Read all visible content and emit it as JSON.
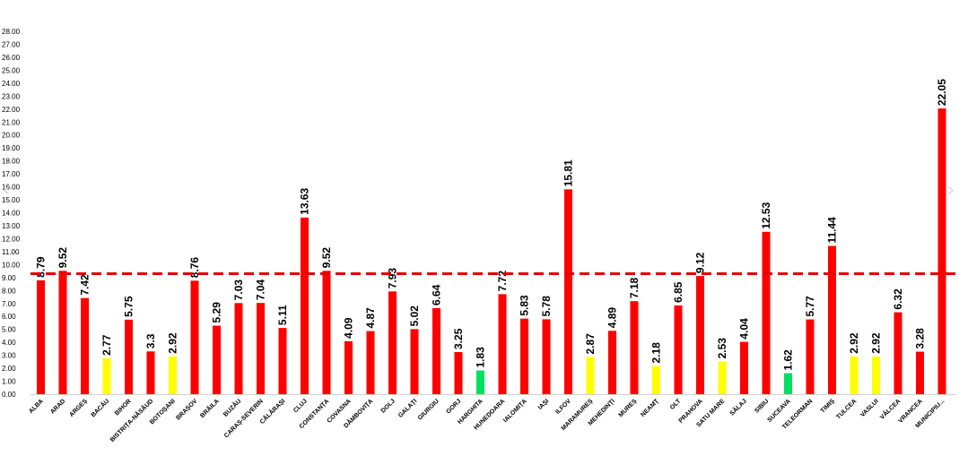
{
  "chart_data": {
    "type": "bar",
    "title": "",
    "xlabel": "",
    "ylabel": "",
    "ylim": [
      0,
      28
    ],
    "ytick_step": 1,
    "ytick_format": "0.00",
    "grid": false,
    "reference_line": {
      "value": 9.3,
      "style": "dashed",
      "color": "#e60000"
    },
    "categories": [
      "ALBA",
      "ARAD",
      "ARGEȘ",
      "BACĂU",
      "BIHOR",
      "BISTRIȚA-NĂSĂUD",
      "BOTOȘANI",
      "BRAȘOV",
      "BRĂILA",
      "BUZĂU",
      "CARAȘ-SEVERIN",
      "CĂLĂRAȘI",
      "CLUJ",
      "CONSTANȚA",
      "COVASNA",
      "DÂMBOVIȚA",
      "DOLJ",
      "GALAȚI",
      "GIURGIU",
      "GORJ",
      "HARGHITA",
      "HUNEDOARA",
      "IALOMIȚA",
      "IAȘI",
      "ILFOV",
      "MARAMUREȘ",
      "MEHEDINȚI",
      "MUREȘ",
      "NEAMȚ",
      "OLT",
      "PRAHOVA",
      "SATU MARE",
      "SĂLAJ",
      "SIBIU",
      "SUCEAVA",
      "TELEORMAN",
      "TIMIȘ",
      "TULCEA",
      "VASLUI",
      "VÂLCEA",
      "VRANCEA",
      "MUNICIPIU..."
    ],
    "values": [
      8.79,
      9.52,
      7.42,
      2.77,
      5.75,
      3.3,
      2.92,
      8.76,
      5.29,
      7.03,
      7.04,
      5.11,
      13.63,
      9.52,
      4.09,
      4.87,
      7.93,
      5.02,
      6.64,
      3.25,
      1.83,
      7.72,
      5.83,
      5.78,
      15.81,
      2.87,
      4.89,
      7.18,
      2.18,
      6.85,
      9.12,
      2.53,
      4.04,
      12.53,
      1.62,
      5.77,
      11.44,
      2.92,
      2.92,
      6.32,
      3.28,
      22.05
    ],
    "value_labels": [
      "8.79",
      "9.52",
      "7.42",
      "2.77",
      "5.75",
      "3.3",
      "2.92",
      "8.76",
      "5.29",
      "7.03",
      "7.04",
      "5.11",
      "13.63",
      "9.52",
      "4.09",
      "4.87",
      "7.93",
      "5.02",
      "6.64",
      "3.25",
      "1.83",
      "7.72",
      "5.83",
      "5.78",
      "15.81",
      "2.87",
      "4.89",
      "7.18",
      "2.18",
      "6.85",
      "9.12",
      "2.53",
      "4.04",
      "12.53",
      "1.62",
      "5.77",
      "11.44",
      "2.92",
      "2.92",
      "6.32",
      "3.28",
      "22.05"
    ],
    "bar_colors": [
      "red",
      "red",
      "red",
      "yellow",
      "red",
      "red",
      "yellow",
      "red",
      "red",
      "red",
      "red",
      "red",
      "red",
      "red",
      "red",
      "red",
      "red",
      "red",
      "red",
      "red",
      "green",
      "red",
      "red",
      "red",
      "red",
      "yellow",
      "red",
      "red",
      "yellow",
      "red",
      "red",
      "yellow",
      "red",
      "red",
      "green",
      "red",
      "red",
      "yellow",
      "yellow",
      "red",
      "red",
      "red"
    ],
    "palette": {
      "red": "#ff0000",
      "yellow": "#ffff00",
      "green": "#00e060"
    }
  },
  "nav": {
    "prev_icon": "chevron-left-icon",
    "next_icon": "chevron-right-icon",
    "prev_glyph": "‹",
    "next_glyph": "›"
  }
}
